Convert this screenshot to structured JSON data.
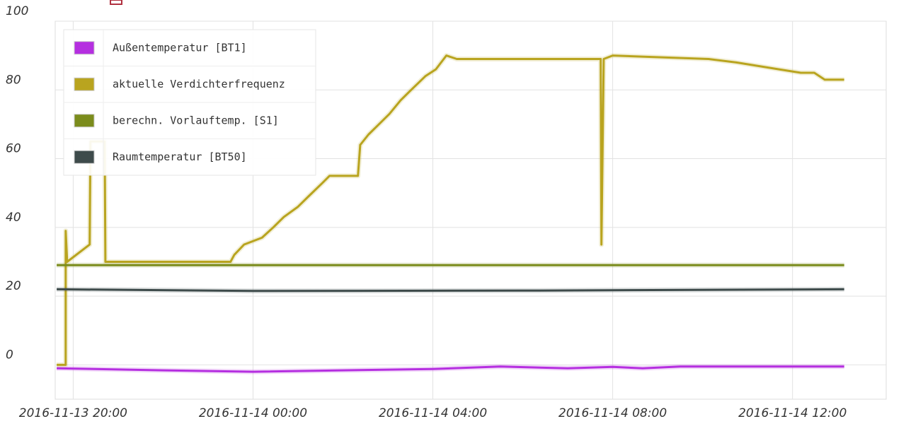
{
  "chart_data": {
    "type": "line",
    "xlim": [
      "2016-11-13 19:36",
      "2016-11-14 14:05"
    ],
    "xticks": [
      "2016-11-13 20:00",
      "2016-11-14 00:00",
      "2016-11-14 04:00",
      "2016-11-14 08:00",
      "2016-11-14 12:00"
    ],
    "ylim": [
      -10,
      100
    ],
    "yticks": [
      0,
      20,
      40,
      60,
      80,
      100
    ],
    "grid": true,
    "legend": "upper left",
    "series": [
      {
        "name": "Außentemperatur [BT1]",
        "color": "#b52fe0",
        "x": [
          "2016-11-13 19:38",
          "2016-11-13 22:00",
          "2016-11-14 00:00",
          "2016-11-14 04:00",
          "2016-11-14 05:30",
          "2016-11-14 07:00",
          "2016-11-14 08:00",
          "2016-11-14 08:40",
          "2016-11-14 09:30",
          "2016-11-14 13:09"
        ],
        "values": [
          -1,
          -1.6,
          -2,
          -1.2,
          -0.5,
          -1,
          -0.6,
          -1,
          -0.5,
          -0.5
        ]
      },
      {
        "name": "aktuelle Verdichterfrequenz",
        "color": "#b9a41f",
        "x": [
          "2016-11-13 19:38",
          "2016-11-13 19:50",
          "2016-11-13 19:50",
          "2016-11-13 19:52",
          "2016-11-13 20:22",
          "2016-11-13 20:23",
          "2016-11-13 20:42",
          "2016-11-13 20:43",
          "2016-11-13 23:30",
          "2016-11-13 23:35",
          "2016-11-13 23:48",
          "2016-11-14 00:12",
          "2016-11-14 00:27",
          "2016-11-14 00:41",
          "2016-11-14 01:00",
          "2016-11-14 01:14",
          "2016-11-14 01:33",
          "2016-11-14 01:42",
          "2016-11-14 02:20",
          "2016-11-14 02:23",
          "2016-11-14 02:34",
          "2016-11-14 02:48",
          "2016-11-14 03:02",
          "2016-11-14 03:17",
          "2016-11-14 03:31",
          "2016-11-14 03:50",
          "2016-11-14 04:04",
          "2016-11-14 04:18",
          "2016-11-14 04:32",
          "2016-11-14 07:44",
          "2016-11-14 07:45",
          "2016-11-14 07:48",
          "2016-11-14 08:00",
          "2016-11-14 10:08",
          "2016-11-14 10:45",
          "2016-11-14 11:42",
          "2016-11-14 12:11",
          "2016-11-14 12:29",
          "2016-11-14 12:43",
          "2016-11-14 13:09"
        ],
        "values": [
          0,
          0,
          39,
          30,
          35,
          65,
          65,
          30,
          30,
          32,
          35,
          37,
          40,
          43,
          46,
          49,
          53,
          55,
          55,
          64,
          67,
          70,
          73,
          77,
          80,
          84,
          86,
          90,
          89,
          89,
          35,
          89,
          90,
          89,
          88,
          86,
          85,
          85,
          83,
          83
        ]
      },
      {
        "name": "berechn. Vorlauftemp. [S1]",
        "color": "#7b8c1c",
        "x": [
          "2016-11-13 19:38",
          "2016-11-14 13:09"
        ],
        "values": [
          29,
          29
        ]
      },
      {
        "name": "Raumtemperatur [BT50]",
        "color": "#3e4b4b",
        "x": [
          "2016-11-13 19:38",
          "2016-11-14 00:00",
          "2016-11-14 06:00",
          "2016-11-14 13:09"
        ],
        "values": [
          22,
          21.5,
          21.6,
          22
        ]
      }
    ]
  }
}
